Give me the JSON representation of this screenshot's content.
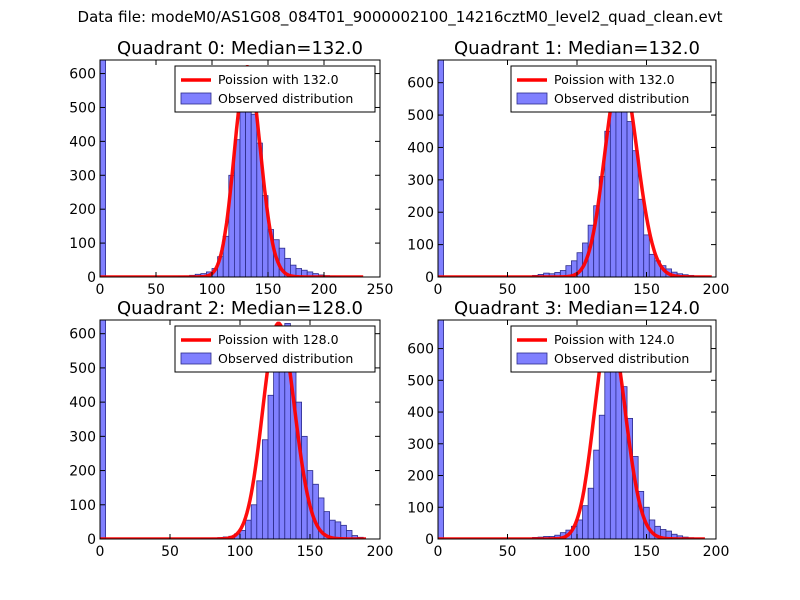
{
  "figure_title": "Data file: modeM0/AS1G08_084T01_9000002100_14216cztM0_level2_quad_clean.evt",
  "colors": {
    "bar_fill": "#8080ff",
    "bar_edge": "#2b2b8a",
    "fit_line": "#ff0000",
    "axes": "#000000"
  },
  "chart_data": [
    {
      "type": "bar",
      "title": "Quadrant 0: Median=132.0",
      "xlim": [
        0,
        250
      ],
      "ylim": [
        0,
        640
      ],
      "xticks": [
        0,
        50,
        100,
        150,
        200,
        250
      ],
      "yticks": [
        0,
        100,
        200,
        300,
        400,
        500,
        600
      ],
      "bin_width": 5,
      "zero_bin_value": 640,
      "bin_starts": [
        65,
        70,
        75,
        80,
        85,
        90,
        95,
        100,
        105,
        110,
        115,
        120,
        125,
        130,
        135,
        140,
        145,
        150,
        155,
        160,
        165,
        170,
        175,
        180,
        185,
        190,
        195,
        200,
        205,
        210
      ],
      "values": [
        1,
        2,
        3,
        5,
        8,
        10,
        15,
        25,
        60,
        120,
        300,
        405,
        510,
        540,
        480,
        395,
        240,
        140,
        110,
        85,
        55,
        35,
        25,
        20,
        15,
        10,
        6,
        4,
        2,
        1
      ],
      "fit": {
        "type": "poisson",
        "mean": 132.0,
        "peak": 620,
        "x_range": [
          0,
          235
        ]
      },
      "legend": [
        "Poission with 132.0",
        "Observed distribution"
      ]
    },
    {
      "type": "bar",
      "title": "Quadrant 1: Median=132.0",
      "xlim": [
        0,
        200
      ],
      "ylim": [
        0,
        670
      ],
      "xticks": [
        0,
        50,
        100,
        150,
        200
      ],
      "yticks": [
        0,
        100,
        200,
        300,
        400,
        500,
        600
      ],
      "bin_width": 4,
      "zero_bin_value": 670,
      "bin_starts": [
        68,
        72,
        76,
        80,
        84,
        88,
        92,
        96,
        100,
        104,
        108,
        112,
        116,
        120,
        124,
        128,
        132,
        136,
        140,
        144,
        148,
        152,
        156,
        160,
        164,
        168,
        172,
        176,
        180,
        184,
        188,
        192
      ],
      "values": [
        5,
        8,
        12,
        10,
        14,
        20,
        35,
        50,
        75,
        105,
        160,
        220,
        310,
        450,
        520,
        640,
        610,
        480,
        390,
        240,
        130,
        70,
        50,
        35,
        25,
        15,
        10,
        7,
        5,
        3,
        2,
        1
      ],
      "fit": {
        "type": "poisson",
        "mean": 132.0,
        "peak": 640,
        "x_range": [
          0,
          197
        ]
      },
      "legend": [
        "Poission with 132.0",
        "Observed distribution"
      ]
    },
    {
      "type": "bar",
      "title": "Quadrant 2: Median=128.0",
      "xlim": [
        0,
        200
      ],
      "ylim": [
        0,
        640
      ],
      "xticks": [
        0,
        50,
        100,
        150,
        200
      ],
      "yticks": [
        0,
        100,
        200,
        300,
        400,
        500,
        600
      ],
      "bin_width": 4,
      "zero_bin_value": 640,
      "bin_starts": [
        72,
        76,
        80,
        84,
        88,
        92,
        96,
        100,
        104,
        108,
        112,
        116,
        120,
        124,
        128,
        132,
        136,
        140,
        144,
        148,
        152,
        156,
        160,
        164,
        168,
        172,
        176,
        180,
        184
      ],
      "values": [
        2,
        2,
        3,
        4,
        6,
        8,
        15,
        25,
        55,
        100,
        170,
        290,
        420,
        520,
        580,
        630,
        570,
        400,
        300,
        200,
        160,
        120,
        80,
        55,
        50,
        40,
        25,
        10,
        5
      ],
      "fit": {
        "type": "poisson",
        "mean": 128.0,
        "peak": 630,
        "x_range": [
          0,
          190
        ]
      },
      "legend": [
        "Poission with 128.0",
        "Observed distribution"
      ]
    },
    {
      "type": "bar",
      "title": "Quadrant 3: Median=124.0",
      "xlim": [
        0,
        200
      ],
      "ylim": [
        0,
        690
      ],
      "xticks": [
        0,
        50,
        100,
        150,
        200
      ],
      "yticks": [
        0,
        100,
        200,
        300,
        400,
        500,
        600
      ],
      "bin_width": 4,
      "zero_bin_value": 690,
      "bin_starts": [
        68,
        72,
        76,
        80,
        84,
        88,
        92,
        96,
        100,
        104,
        108,
        112,
        116,
        120,
        124,
        128,
        132,
        136,
        140,
        144,
        148,
        152,
        156,
        160,
        164,
        168,
        172,
        176,
        180,
        184
      ],
      "values": [
        5,
        6,
        8,
        8,
        12,
        20,
        28,
        40,
        60,
        105,
        160,
        280,
        390,
        530,
        660,
        620,
        480,
        380,
        260,
        150,
        100,
        60,
        40,
        30,
        25,
        15,
        10,
        6,
        4,
        2
      ],
      "fit": {
        "type": "poisson",
        "mean": 124.0,
        "peak": 660,
        "x_range": [
          0,
          192
        ]
      },
      "legend": [
        "Poission with 124.0",
        "Observed distribution"
      ]
    }
  ]
}
